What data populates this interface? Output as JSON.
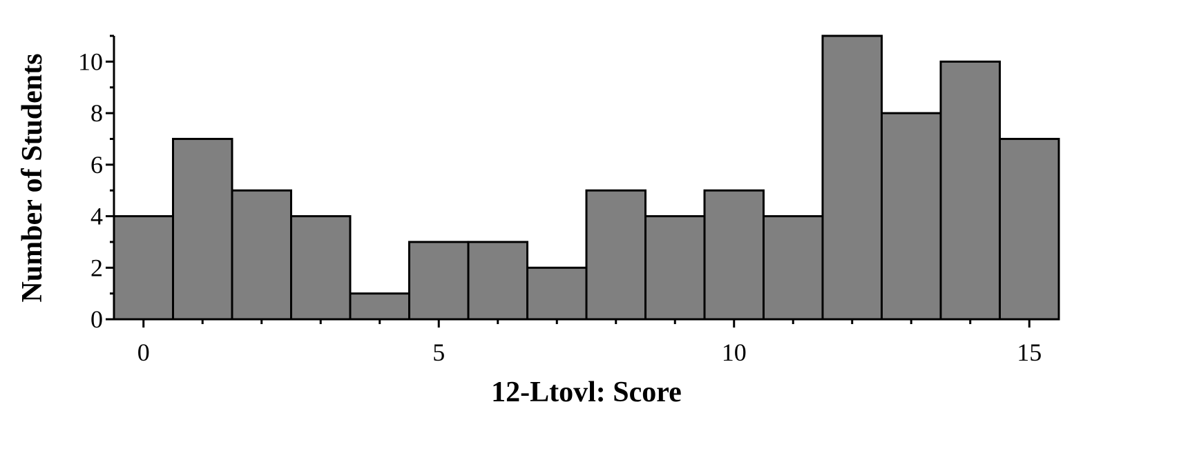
{
  "chart_data": {
    "type": "bar",
    "subtype": "histogram",
    "title": "",
    "xlabel": "12-Ltovl: Score",
    "ylabel": "Number of Students",
    "x": [
      0,
      1,
      2,
      3,
      4,
      5,
      6,
      7,
      8,
      9,
      10,
      11,
      12,
      13,
      14,
      15
    ],
    "values": [
      4,
      7,
      5,
      4,
      1,
      3,
      3,
      2,
      5,
      4,
      5,
      4,
      11,
      8,
      10,
      7
    ],
    "xlim": [
      -0.5,
      15.5
    ],
    "ylim": [
      0,
      11
    ],
    "xticks": [
      0,
      5,
      10,
      15
    ],
    "xtick_labels": [
      "0",
      "5",
      "10",
      "15"
    ],
    "yticks": [
      0,
      2,
      4,
      6,
      8,
      10
    ],
    "ytick_labels": [
      "0",
      "2",
      "4",
      "6",
      "8",
      "10"
    ],
    "grid": false,
    "legend": "none",
    "colors": {
      "bar_fill": "#808080",
      "bar_edge": "#000000"
    }
  }
}
